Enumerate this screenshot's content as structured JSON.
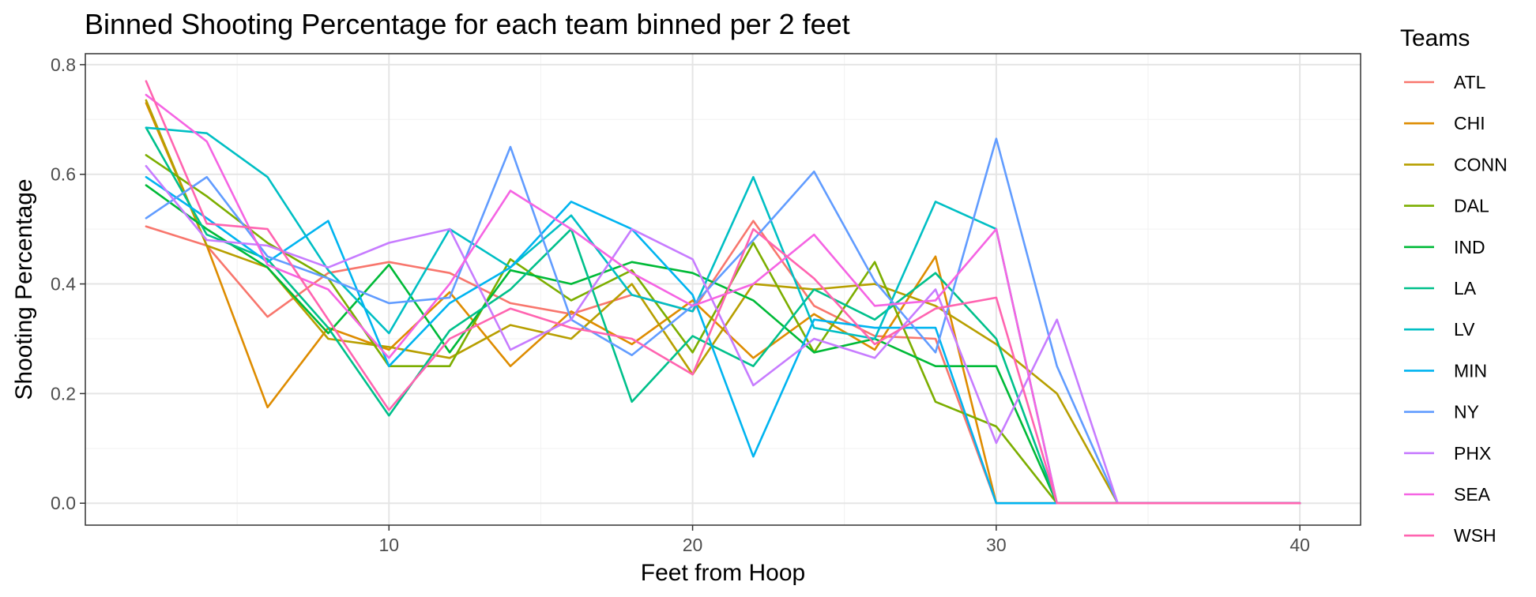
{
  "chart_data": {
    "type": "line",
    "title": "Binned Shooting Percentage for each team binned per 2 feet",
    "xlabel": "Feet from Hoop",
    "ylabel": "Shooting Percentage",
    "xlim": [
      0,
      42
    ],
    "ylim": [
      -0.04,
      0.82
    ],
    "x_ticks": [
      10,
      20,
      30,
      40
    ],
    "y_ticks": [
      0.0,
      0.2,
      0.4,
      0.6,
      0.8
    ],
    "x_tick_labels": [
      "10",
      "20",
      "30",
      "40"
    ],
    "y_tick_labels": [
      "0.0",
      "0.2",
      "0.4",
      "0.6",
      "0.8"
    ],
    "grid": true,
    "legend": {
      "title": "Teams",
      "position": "right"
    },
    "x": [
      2,
      4,
      6,
      8,
      10,
      12,
      14,
      16,
      18,
      20,
      22,
      24,
      26,
      28,
      30,
      32,
      34,
      36,
      38,
      40
    ],
    "series": [
      {
        "name": "ATL",
        "color": "#F8766D",
        "values": [
          0.505,
          0.47,
          0.34,
          0.42,
          0.44,
          0.42,
          0.365,
          0.345,
          0.38,
          0.35,
          0.515,
          0.36,
          0.305,
          0.3,
          0.0,
          0.0,
          0.0,
          0.0,
          0.0,
          0.0
        ]
      },
      {
        "name": "CHI",
        "color": "#DE8C00",
        "values": [
          0.73,
          0.47,
          0.175,
          0.32,
          0.28,
          0.385,
          0.25,
          0.35,
          0.29,
          0.37,
          0.265,
          0.345,
          0.28,
          0.45,
          0.0,
          0.0,
          0.0,
          0.0,
          0.0,
          0.0
        ]
      },
      {
        "name": "CONN",
        "color": "#B79F00",
        "values": [
          0.735,
          0.47,
          0.43,
          0.3,
          0.285,
          0.265,
          0.325,
          0.3,
          0.4,
          0.235,
          0.4,
          0.39,
          0.4,
          0.36,
          0.29,
          0.2,
          0.0,
          0.0,
          0.0,
          0.0
        ]
      },
      {
        "name": "DAL",
        "color": "#7CAE00",
        "values": [
          0.635,
          0.56,
          0.475,
          0.41,
          0.25,
          0.25,
          0.445,
          0.37,
          0.425,
          0.275,
          0.475,
          0.275,
          0.44,
          0.185,
          0.14,
          0.0,
          0.0,
          0.0,
          0.0,
          0.0
        ]
      },
      {
        "name": "IND",
        "color": "#00BA38",
        "values": [
          0.58,
          0.5,
          0.43,
          0.31,
          0.435,
          0.275,
          0.425,
          0.4,
          0.44,
          0.42,
          0.37,
          0.275,
          0.3,
          0.25,
          0.25,
          0.0,
          0.0,
          0.0,
          0.0,
          0.0
        ]
      },
      {
        "name": "LA",
        "color": "#00C08B",
        "values": [
          0.685,
          0.49,
          0.445,
          0.32,
          0.16,
          0.315,
          0.39,
          0.5,
          0.185,
          0.305,
          0.25,
          0.39,
          0.335,
          0.42,
          0.3,
          0.0,
          0.0,
          0.0,
          0.0,
          0.0
        ]
      },
      {
        "name": "LV",
        "color": "#00BFC4",
        "values": [
          0.685,
          0.675,
          0.595,
          0.425,
          0.31,
          0.5,
          0.43,
          0.525,
          0.38,
          0.35,
          0.595,
          0.32,
          0.3,
          0.55,
          0.5,
          0.0,
          0.0,
          0.0,
          0.0,
          0.0
        ]
      },
      {
        "name": "MIN",
        "color": "#00B4F0",
        "values": [
          0.595,
          0.52,
          0.44,
          0.515,
          0.25,
          0.365,
          0.43,
          0.55,
          0.5,
          0.38,
          0.085,
          0.335,
          0.32,
          0.32,
          0.0,
          0.0,
          0.0,
          0.0,
          0.0,
          0.0
        ]
      },
      {
        "name": "NY",
        "color": "#619CFF",
        "values": [
          0.52,
          0.595,
          0.45,
          0.41,
          0.365,
          0.375,
          0.65,
          0.335,
          0.27,
          0.36,
          0.48,
          0.605,
          0.405,
          0.275,
          0.665,
          0.25,
          0.0,
          0.0,
          0.0,
          0.0
        ]
      },
      {
        "name": "PHX",
        "color": "#C77CFF",
        "values": [
          0.615,
          0.48,
          0.47,
          0.43,
          0.475,
          0.5,
          0.28,
          0.335,
          0.5,
          0.445,
          0.215,
          0.3,
          0.265,
          0.39,
          0.11,
          0.335,
          0.0,
          0.0,
          0.0,
          0.0
        ]
      },
      {
        "name": "SEA",
        "color": "#F564E3",
        "values": [
          0.745,
          0.66,
          0.435,
          0.39,
          0.265,
          0.4,
          0.57,
          0.5,
          0.42,
          0.36,
          0.4,
          0.49,
          0.36,
          0.37,
          0.5,
          0.0,
          0.0,
          0.0,
          0.0,
          0.0
        ]
      },
      {
        "name": "WSH",
        "color": "#FF64B0",
        "values": [
          0.77,
          0.51,
          0.5,
          0.335,
          0.17,
          0.3,
          0.355,
          0.32,
          0.3,
          0.235,
          0.5,
          0.41,
          0.29,
          0.355,
          0.375,
          0.0,
          0.0,
          0.0,
          0.0,
          0.0
        ]
      }
    ]
  }
}
